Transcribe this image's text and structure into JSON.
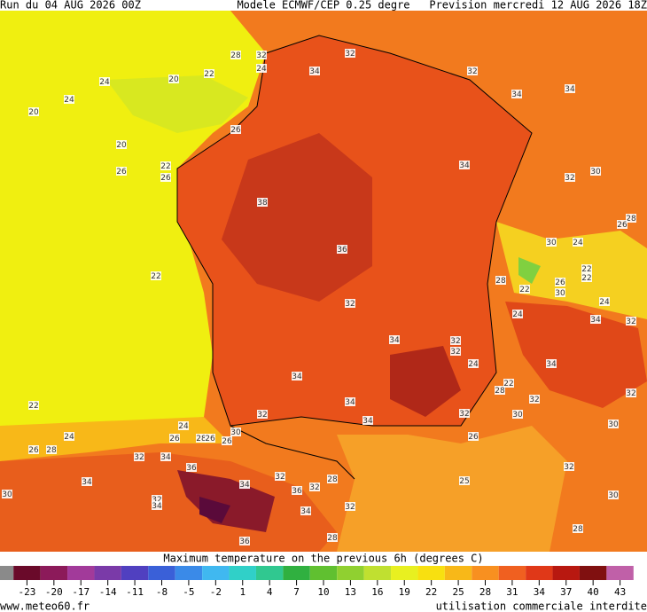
{
  "header": {
    "run": "Run du 04 AUG 2026 00Z",
    "model": "Modele ECMWF/CEP 0.25 degre",
    "forecast": "Prevision mercredi 12 AUG 2026 18Z"
  },
  "map_labels": [
    28,
    32,
    24,
    22,
    20,
    24,
    24,
    20,
    20,
    26,
    34,
    32,
    32,
    34,
    34,
    22,
    26,
    26,
    38,
    36,
    34,
    32,
    30,
    28,
    26,
    30,
    24,
    22,
    22,
    26,
    30,
    22,
    24,
    28,
    32,
    34,
    32,
    32,
    24,
    24,
    34,
    32,
    34,
    22,
    28,
    32,
    32,
    34,
    34,
    32,
    30,
    34,
    22,
    22,
    24,
    24,
    26,
    28,
    26,
    28,
    26,
    26,
    30,
    32,
    32,
    34,
    36,
    34,
    34,
    32,
    36,
    32,
    28,
    34,
    32,
    32,
    34,
    30,
    36,
    28,
    25,
    26,
    30,
    32,
    28,
    30
  ],
  "colorbar": {
    "title": "Maximum temperature on the previous 6h (degrees C)",
    "lim": [
      -26,
      46
    ],
    "under_color": "#8a8a8a",
    "ticks": [
      -23,
      -20,
      -17,
      -14,
      -11,
      -8,
      -5,
      -2,
      1,
      4,
      7,
      10,
      13,
      16,
      19,
      22,
      25,
      28,
      31,
      34,
      37,
      40,
      43
    ],
    "colors": [
      "#6a0a2a",
      "#8c1a5a",
      "#a23a9a",
      "#7a3aa8",
      "#5040c0",
      "#3a60d8",
      "#3a8ae8",
      "#40b8f0",
      "#30d0c8",
      "#30c890",
      "#30b040",
      "#60c030",
      "#90d030",
      "#c0e030",
      "#e8f020",
      "#f8e010",
      "#f8b818",
      "#f89020",
      "#f06020",
      "#e03818",
      "#b81810",
      "#801010",
      "#c060a8"
    ]
  },
  "footer": {
    "site": "www.meteo60.fr",
    "notice": "utilisation commerciale interdite"
  }
}
